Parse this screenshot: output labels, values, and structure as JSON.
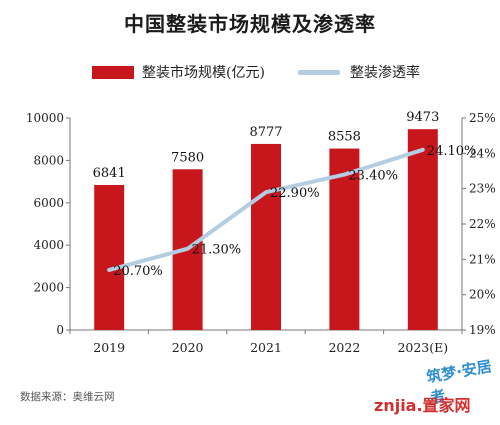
{
  "chart_data": {
    "type": "bar",
    "title": "中国整装市场规模及渗透率",
    "categories": [
      "2019",
      "2020",
      "2021",
      "2022",
      "2023(E)"
    ],
    "series": [
      {
        "name": "整装市场规模(亿元)",
        "type": "bar",
        "axis": "left",
        "color": "#c8161d",
        "values": [
          6841,
          7580,
          8777,
          8558,
          9473
        ],
        "labels": [
          "6841",
          "7580",
          "8777",
          "8558",
          "9473"
        ]
      },
      {
        "name": "整装渗透率",
        "type": "line",
        "axis": "right",
        "color": "#b3cde3",
        "values": [
          20.7,
          21.3,
          22.9,
          23.4,
          24.1
        ],
        "labels": [
          "20.70%",
          "21.30%",
          "22.90%",
          "23.40%",
          "24.10%"
        ]
      }
    ],
    "y_left": {
      "range": [
        0,
        10000
      ],
      "ticks": [
        "0",
        "2000",
        "4000",
        "6000",
        "8000",
        "10000"
      ]
    },
    "y_right": {
      "range": [
        19,
        25
      ],
      "ticks": [
        "19%",
        "20%",
        "21%",
        "22%",
        "23%",
        "24%",
        "25%"
      ]
    },
    "grid": false,
    "legend_position": "top"
  },
  "source_note": "数据来源：奥维云网",
  "watermark": {
    "line1": "筑梦·安居者",
    "line2": "znjia.置家网"
  }
}
